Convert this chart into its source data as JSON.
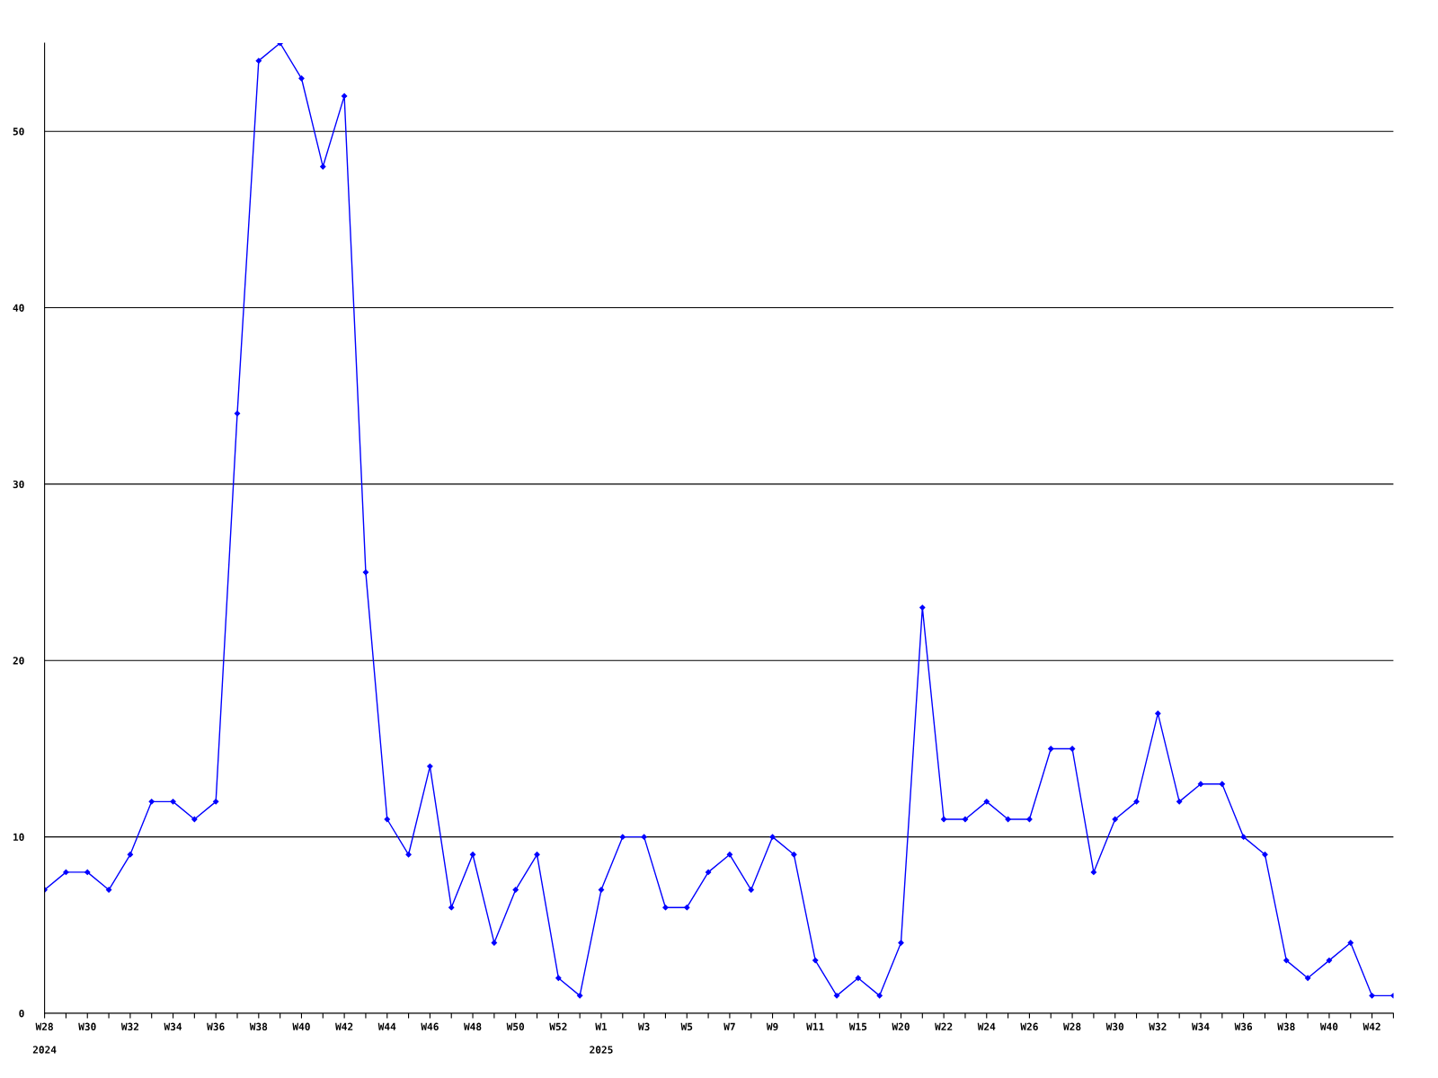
{
  "chart_data": {
    "type": "line",
    "categories": [
      "W28",
      null,
      "W30",
      null,
      "W32",
      null,
      "W34",
      null,
      "W36",
      null,
      "W38",
      null,
      "W40",
      null,
      "W42",
      null,
      "W44",
      null,
      "W46",
      null,
      "W48",
      null,
      "W50",
      null,
      "W52",
      null,
      "W1",
      null,
      "W3",
      null,
      "W5",
      null,
      "W7",
      null,
      "W9",
      null,
      "W11",
      null,
      "W15",
      null,
      "W20",
      null,
      "W22",
      null,
      "W24",
      null,
      "W26",
      null,
      "W28",
      null,
      "W30",
      null,
      "W32",
      null,
      "W34",
      null,
      "W36",
      null,
      "W38",
      null,
      "W40",
      null,
      "W42",
      null
    ],
    "series": [
      {
        "color": "#0000ff",
        "values": [
          7,
          8,
          8,
          7,
          9,
          12,
          12,
          11,
          12,
          34,
          54,
          55,
          53,
          48,
          52,
          25,
          11,
          9,
          14,
          6,
          9,
          4,
          7,
          9,
          2,
          1,
          7,
          10,
          10,
          6,
          6,
          8,
          9,
          7,
          10,
          9,
          3,
          1,
          2,
          1,
          4,
          23,
          11,
          11,
          12,
          11,
          11,
          15,
          15,
          8,
          11,
          12,
          17,
          12,
          13,
          13,
          10,
          9,
          3,
          2,
          3,
          4,
          1,
          1
        ]
      }
    ],
    "ylim": [
      0,
      55
    ],
    "yticks": [
      0,
      10,
      20,
      30,
      40,
      50
    ],
    "grid": "y",
    "marker": "diamond",
    "line_style": "solid",
    "legend": false,
    "annotations": [
      "2024",
      "2025"
    ]
  }
}
